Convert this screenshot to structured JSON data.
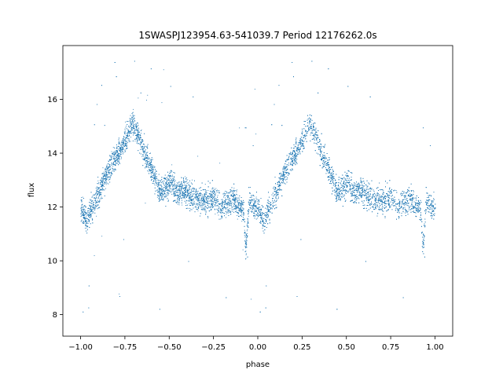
{
  "chart_data": {
    "type": "scatter",
    "title": "1SWASPJ123954.63-541039.7 Period 12176262.0s",
    "xlabel": "phase",
    "ylabel": "flux",
    "xlim": [
      -1.1,
      1.1
    ],
    "ylim": [
      7.2,
      18.0
    ],
    "xticks": [
      "−1.00",
      "−0.75",
      "−0.50",
      "−0.25",
      "0.00",
      "0.25",
      "0.50",
      "0.75",
      "1.00"
    ],
    "xtick_values": [
      -1.0,
      -0.75,
      -0.5,
      -0.25,
      0.0,
      0.25,
      0.5,
      0.75,
      1.0
    ],
    "yticks": [
      "8",
      "10",
      "12",
      "14",
      "16"
    ],
    "ytick_values": [
      8,
      10,
      12,
      14,
      16
    ],
    "grid": false,
    "legend": "none",
    "marker_color": "#1f77b4",
    "series": [
      {
        "phase_profile": [
          [
            0.0,
            12.0
          ],
          [
            0.03,
            11.5
          ],
          [
            0.06,
            11.9
          ],
          [
            0.09,
            12.4
          ],
          [
            0.12,
            12.8
          ],
          [
            0.15,
            13.3
          ],
          [
            0.18,
            13.7
          ],
          [
            0.21,
            14.0
          ],
          [
            0.24,
            14.3
          ],
          [
            0.27,
            14.8
          ],
          [
            0.29,
            15.1
          ],
          [
            0.31,
            14.9
          ],
          [
            0.33,
            14.5
          ],
          [
            0.36,
            14.0
          ],
          [
            0.39,
            13.6
          ],
          [
            0.42,
            13.0
          ],
          [
            0.45,
            12.6
          ],
          [
            0.48,
            12.7
          ],
          [
            0.51,
            12.9
          ],
          [
            0.54,
            12.5
          ],
          [
            0.58,
            12.7
          ],
          [
            0.62,
            12.4
          ],
          [
            0.66,
            12.3
          ],
          [
            0.7,
            12.2
          ],
          [
            0.75,
            12.3
          ],
          [
            0.79,
            12.0
          ],
          [
            0.83,
            12.2
          ],
          [
            0.86,
            12.3
          ],
          [
            0.89,
            12.1
          ],
          [
            0.92,
            11.8
          ],
          [
            0.93,
            10.4
          ],
          [
            0.95,
            12.2
          ],
          [
            0.97,
            12.1
          ],
          [
            1.0,
            12.0
          ]
        ],
        "scatter_width": 0.45,
        "points_per_cycle": 5000,
        "x_range": [
          -1.0,
          1.0
        ]
      }
    ]
  }
}
